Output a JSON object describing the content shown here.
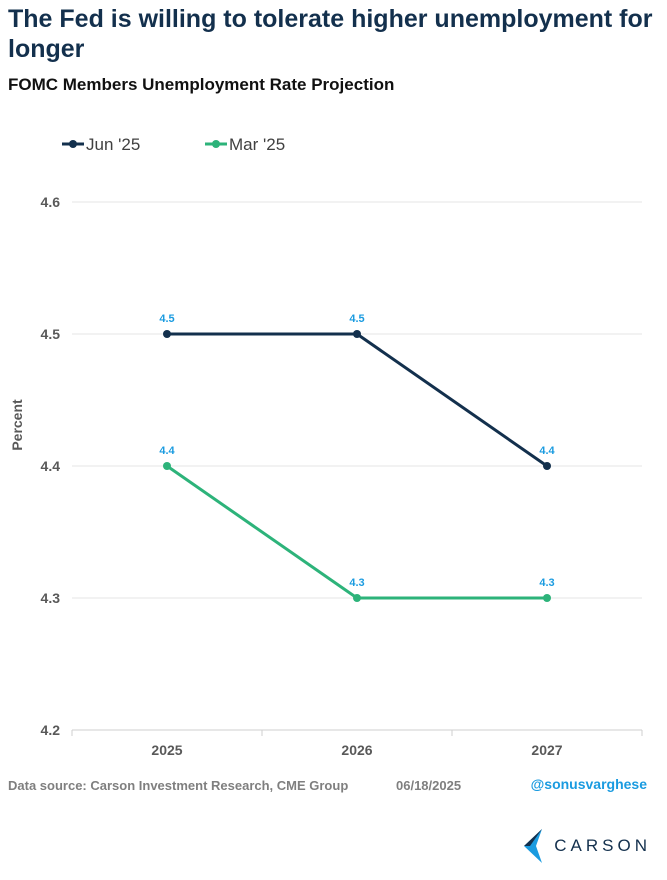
{
  "title": "The Fed is willing to tolerate higher unemployment for longer",
  "subtitle": "FOMC Members Unemployment Rate Projection",
  "footer": {
    "source": "Data source: Carson Investment Research, CME Group",
    "date": "06/18/2025",
    "handle": "@sonusvarghese",
    "logo_text": "CARSON"
  },
  "colors": {
    "title": "#13304d",
    "jun": "#13304d",
    "mar": "#2db37a",
    "data_label": "#1a9be0",
    "grid": "#e6e6e6",
    "tick": "#595959"
  },
  "chart_data": {
    "type": "line",
    "categories": [
      "2025",
      "2026",
      "2027"
    ],
    "series": [
      {
        "name": "Jun '25",
        "values": [
          4.5,
          4.5,
          4.4
        ],
        "color": "#13304d"
      },
      {
        "name": "Mar '25",
        "values": [
          4.4,
          4.3,
          4.3
        ],
        "color": "#2db37a"
      }
    ],
    "ylabel": "Percent",
    "ylim": [
      4.2,
      4.6
    ],
    "yticks": [
      "4.2",
      "4.3",
      "4.4",
      "4.5",
      "4.6"
    ],
    "grid": true,
    "legend_position": "top-left",
    "data_labels": true
  }
}
